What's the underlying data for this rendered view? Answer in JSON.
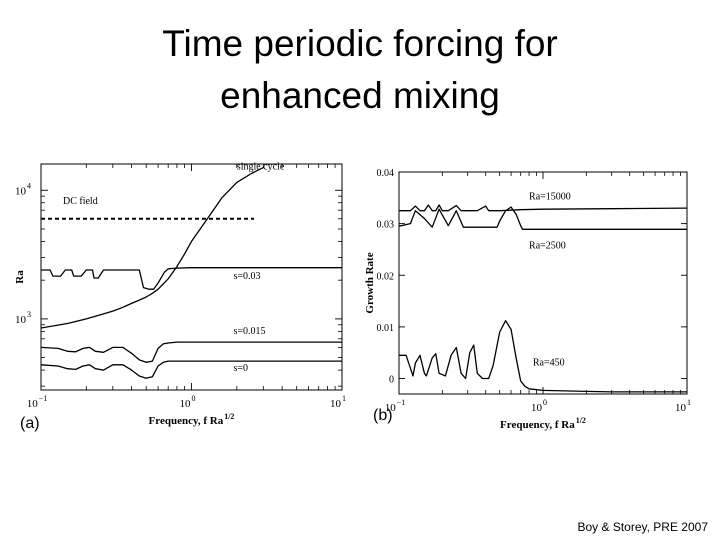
{
  "title_lines": [
    "Time periodic forcing for",
    "enhanced mixing"
  ],
  "citation": "Boy & Storey, PRE 2007",
  "chart_data": [
    {
      "type": "line",
      "panel_label": "(a)",
      "xlabel": "Frequency, f Ra",
      "xlabel_sup": "1/2",
      "ylabel": "Ra",
      "xscale": "log",
      "yscale": "log",
      "xlim": [
        0.1,
        10
      ],
      "ylim": [
        280,
        16000
      ],
      "x_ticks": [
        {
          "value": 0.1,
          "base": "10",
          "exp": "−1"
        },
        {
          "value": 1,
          "base": "10",
          "exp": "0"
        },
        {
          "value": 10,
          "base": "10",
          "exp": "1"
        }
      ],
      "y_ticks": [
        {
          "value": 1000,
          "base": "10",
          "exp": "3"
        },
        {
          "value": 10000,
          "base": "10",
          "exp": "4"
        }
      ],
      "grid": false,
      "legend": "none",
      "series": [
        {
          "name": "single cycle",
          "x": [
            0.1,
            0.15,
            0.2,
            0.25,
            0.3,
            0.35,
            0.4,
            0.45,
            0.5,
            0.55,
            0.6,
            0.7,
            0.8,
            0.9,
            1.0,
            1.3,
            1.6,
            2.0,
            2.5,
            3.0
          ],
          "y": [
            850,
            920,
            1000,
            1080,
            1150,
            1230,
            1320,
            1400,
            1480,
            1580,
            1700,
            2050,
            2550,
            3200,
            4000,
            6200,
            8800,
            11500,
            13500,
            15000
          ],
          "labels": [
            {
              "text": "single cycle",
              "x": 2.0,
              "y": 14500
            }
          ]
        },
        {
          "name": "DC field",
          "dashed": true,
          "x": [
            0.1,
            2.6
          ],
          "y": [
            6000,
            6000
          ],
          "labels": [
            {
              "text": "DC field",
              "x": 0.14,
              "y": 7800
            }
          ]
        },
        {
          "name": "s=0.03",
          "x": [
            0.1,
            0.115,
            0.12,
            0.135,
            0.145,
            0.16,
            0.165,
            0.185,
            0.2,
            0.22,
            0.225,
            0.24,
            0.26,
            0.28,
            0.3,
            0.34,
            0.38,
            0.42,
            0.45,
            0.48,
            0.52,
            0.56,
            0.6,
            0.66,
            0.7,
            0.8,
            1.0,
            2.0,
            10
          ],
          "y": [
            2400,
            2400,
            2150,
            2150,
            2400,
            2400,
            2150,
            2150,
            2400,
            2400,
            2080,
            2080,
            2400,
            2400,
            2400,
            2400,
            2400,
            2400,
            2400,
            1750,
            1700,
            1700,
            1900,
            2300,
            2450,
            2480,
            2500,
            2500,
            2500
          ],
          "labels": [
            {
              "text": "s=0.03",
              "x": 1.9,
              "y": 2050
            }
          ]
        },
        {
          "name": "s=0.015",
          "x": [
            0.1,
            0.13,
            0.15,
            0.17,
            0.19,
            0.21,
            0.23,
            0.26,
            0.3,
            0.35,
            0.4,
            0.45,
            0.5,
            0.55,
            0.6,
            0.65,
            0.7,
            0.8,
            1.0,
            2.0,
            10
          ],
          "y": [
            600,
            590,
            560,
            555,
            590,
            600,
            560,
            550,
            600,
            600,
            540,
            480,
            460,
            470,
            590,
            640,
            650,
            660,
            660,
            660,
            660
          ],
          "labels": [
            {
              "text": "s=0.015",
              "x": 1.9,
              "y": 760
            }
          ]
        },
        {
          "name": "s=0",
          "x": [
            0.1,
            0.13,
            0.15,
            0.17,
            0.19,
            0.21,
            0.23,
            0.26,
            0.3,
            0.35,
            0.4,
            0.45,
            0.5,
            0.55,
            0.6,
            0.65,
            0.7,
            0.8,
            1.0,
            2.0,
            10
          ],
          "y": [
            440,
            430,
            410,
            405,
            430,
            440,
            410,
            400,
            440,
            440,
            400,
            360,
            345,
            355,
            430,
            460,
            470,
            470,
            470,
            470,
            470
          ],
          "labels": [
            {
              "text": "s=0",
              "x": 1.9,
              "y": 395
            }
          ]
        }
      ]
    },
    {
      "type": "line",
      "panel_label": "(b)",
      "xlabel": "Frequency, f Ra",
      "xlabel_sup": "1/2",
      "ylabel": "Growth Rate",
      "xscale": "log",
      "yscale": "linear",
      "xlim": [
        0.1,
        10
      ],
      "ylim": [
        -0.003,
        0.04
      ],
      "x_ticks": [
        {
          "value": 0.1,
          "base": "10",
          "exp": "−1"
        },
        {
          "value": 1,
          "base": "10",
          "exp": "0"
        },
        {
          "value": 10,
          "base": "10",
          "exp": "1"
        }
      ],
      "y_ticks": [
        {
          "value": 0,
          "label": "0"
        },
        {
          "value": 0.01,
          "label": "0.01"
        },
        {
          "value": 0.02,
          "label": "0.02"
        },
        {
          "value": 0.03,
          "label": "0.03"
        },
        {
          "value": 0.04,
          "label": "0.04"
        }
      ],
      "grid": false,
      "legend": "none",
      "series": [
        {
          "name": "Ra=15000",
          "x": [
            0.1,
            0.12,
            0.13,
            0.14,
            0.15,
            0.16,
            0.17,
            0.18,
            0.19,
            0.2,
            0.22,
            0.25,
            0.27,
            0.3,
            0.35,
            0.4,
            0.42,
            0.45,
            0.5,
            0.7,
            1.0,
            3.0,
            10
          ],
          "y": [
            0.0325,
            0.0325,
            0.0334,
            0.0325,
            0.0325,
            0.0336,
            0.0325,
            0.0325,
            0.0336,
            0.0325,
            0.0325,
            0.0335,
            0.0325,
            0.0325,
            0.0325,
            0.0334,
            0.0325,
            0.0325,
            0.0325,
            0.0327,
            0.0328,
            0.0329,
            0.033
          ],
          "labels": [
            {
              "text": "Ra=15000",
              "x": 0.8,
              "y": 0.0347
            }
          ]
        },
        {
          "name": "Ra=2500",
          "x": [
            0.1,
            0.12,
            0.13,
            0.15,
            0.17,
            0.19,
            0.22,
            0.25,
            0.28,
            0.32,
            0.36,
            0.42,
            0.48,
            0.5,
            0.55,
            0.6,
            0.65,
            0.7,
            0.72,
            1.0,
            2.0,
            10
          ],
          "y": [
            0.0295,
            0.03,
            0.0325,
            0.031,
            0.0293,
            0.0328,
            0.0296,
            0.0325,
            0.0293,
            0.0293,
            0.0293,
            0.0293,
            0.0293,
            0.0305,
            0.0325,
            0.0332,
            0.0318,
            0.0296,
            0.0289,
            0.0289,
            0.0289,
            0.0289
          ],
          "labels": [
            {
              "text": "Ra=2500",
              "x": 0.8,
              "y": 0.0252
            }
          ]
        },
        {
          "name": "Ra=450",
          "x": [
            0.1,
            0.112,
            0.125,
            0.13,
            0.14,
            0.15,
            0.155,
            0.17,
            0.18,
            0.19,
            0.21,
            0.23,
            0.25,
            0.27,
            0.29,
            0.31,
            0.33,
            0.35,
            0.38,
            0.42,
            0.45,
            0.5,
            0.55,
            0.6,
            0.65,
            0.7,
            0.75,
            0.8,
            1.0,
            2.0,
            3.0,
            10
          ],
          "y": [
            0.0045,
            0.0045,
            0.0005,
            0.003,
            0.0045,
            0.001,
            0.0005,
            0.004,
            0.0048,
            0.001,
            0.0005,
            0.0045,
            0.006,
            0.001,
            0.0,
            0.005,
            0.0065,
            0.001,
            0.0,
            0.0,
            0.0025,
            0.009,
            0.0112,
            0.0095,
            0.004,
            -0.0005,
            -0.0015,
            -0.002,
            -0.0023,
            -0.0025,
            -0.0026,
            -0.0026
          ],
          "labels": [
            {
              "text": "Ra=450",
              "x": 0.85,
              "y": 0.0025
            }
          ]
        }
      ]
    }
  ]
}
